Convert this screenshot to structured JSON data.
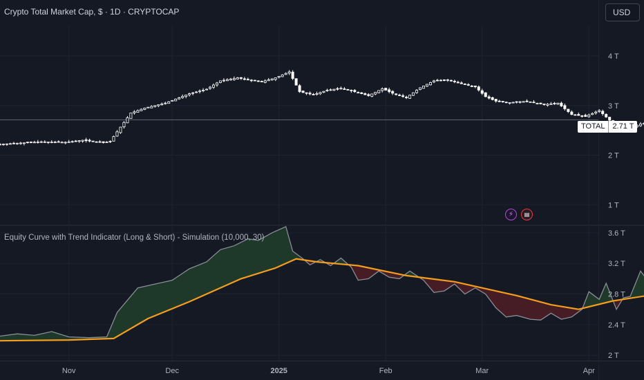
{
  "header": {
    "title": "Crypto Total Market Cap, $ · 1D · CRYPTOCAP",
    "currency": "USD"
  },
  "price_tag": {
    "symbol": "TOTAL",
    "value": "2.71 T"
  },
  "indicator": {
    "title": "Equity Curve with Trend Indicator (Long & Short) - Simulation (10,000, 30)"
  },
  "colors": {
    "background": "#151924",
    "candle": "#ffffff",
    "equity_line": "#8a8e99",
    "trend_line": "#f59d1d",
    "fill_up": "#1f3a2a",
    "fill_down": "#4a1e26",
    "grid": "#1f2331"
  },
  "icons": [
    "dividend-lightning-icon",
    "us-flag-icon"
  ],
  "chart_data": [
    {
      "type": "candlestick",
      "title": "Crypto Total Market Cap, $ · 1D · CRYPTOCAP",
      "series_name": "TOTAL",
      "last_value": "2.71 T",
      "y_axis": {
        "ticks": [
          1,
          2,
          3,
          4
        ],
        "tick_labels": [
          "1 T",
          "2 T",
          "3 T",
          "4 T"
        ],
        "range": [
          0.6,
          4.6
        ],
        "unit": "T"
      },
      "x_axis": {
        "ticks": [
          "Nov",
          "Dec",
          "2025",
          "Feb",
          "Mar",
          "Apr"
        ],
        "range": [
          "2024-10-12",
          "2025-04-17"
        ]
      },
      "start_date": "2024-10-12",
      "end_date": "2025-03-22",
      "anchors": [
        [
          0,
          2.22
        ],
        [
          12,
          2.27
        ],
        [
          19,
          2.26
        ],
        [
          24,
          2.3
        ],
        [
          30,
          2.25
        ],
        [
          32,
          2.28
        ],
        [
          38,
          2.85
        ],
        [
          42,
          2.95
        ],
        [
          48,
          3.05
        ],
        [
          55,
          3.24
        ],
        [
          60,
          3.33
        ],
        [
          64,
          3.5
        ],
        [
          69,
          3.56
        ],
        [
          72,
          3.52
        ],
        [
          76,
          3.48
        ],
        [
          80,
          3.56
        ],
        [
          84,
          3.68
        ],
        [
          87,
          3.28
        ],
        [
          91,
          3.22
        ],
        [
          95,
          3.31
        ],
        [
          99,
          3.35
        ],
        [
          103,
          3.28
        ],
        [
          107,
          3.2
        ],
        [
          111,
          3.34
        ],
        [
          114,
          3.25
        ],
        [
          118,
          3.16
        ],
        [
          122,
          3.36
        ],
        [
          126,
          3.5
        ],
        [
          130,
          3.52
        ],
        [
          134,
          3.44
        ],
        [
          138,
          3.38
        ],
        [
          141,
          3.18
        ],
        [
          144,
          3.09
        ],
        [
          148,
          3.06
        ],
        [
          153,
          3.09
        ],
        [
          158,
          3.02
        ],
        [
          162,
          3.05
        ],
        [
          166,
          2.82
        ],
        [
          170,
          2.78
        ],
        [
          174,
          2.9
        ],
        [
          178,
          2.64
        ],
        [
          182,
          2.52
        ],
        [
          186,
          2.63
        ],
        [
          190,
          2.68
        ],
        [
          193,
          2.71
        ]
      ]
    },
    {
      "type": "area",
      "title": "Equity Curve with Trend Indicator (Long & Short) - Simulation (10,000, 30)",
      "y_axis": {
        "ticks": [
          2.0,
          2.4,
          2.8,
          3.2,
          3.6
        ],
        "tick_labels": [
          "2 T",
          "2.4 T",
          "2.8 T",
          "3.2 T",
          "3.6 T"
        ],
        "range": [
          1.93,
          3.68
        ],
        "unit": "T"
      },
      "equity": [
        [
          0,
          2.25
        ],
        [
          5,
          2.28
        ],
        [
          10,
          2.26
        ],
        [
          15,
          2.31
        ],
        [
          20,
          2.24
        ],
        [
          26,
          2.23
        ],
        [
          31,
          2.24
        ],
        [
          34,
          2.56
        ],
        [
          40,
          2.88
        ],
        [
          45,
          2.93
        ],
        [
          50,
          2.98
        ],
        [
          55,
          3.13
        ],
        [
          60,
          3.22
        ],
        [
          64,
          3.38
        ],
        [
          68,
          3.43
        ],
        [
          72,
          3.52
        ],
        [
          75,
          3.5
        ],
        [
          79,
          3.6
        ],
        [
          83,
          3.68
        ],
        [
          85,
          3.36
        ],
        [
          88,
          3.26
        ],
        [
          90,
          3.18
        ],
        [
          93,
          3.25
        ],
        [
          96,
          3.17
        ],
        [
          99,
          3.27
        ],
        [
          102,
          3.15
        ],
        [
          104,
          2.98
        ],
        [
          107,
          3.0
        ],
        [
          110,
          3.1
        ],
        [
          113,
          3.02
        ],
        [
          116,
          3.0
        ],
        [
          119,
          3.1
        ],
        [
          123,
          2.98
        ],
        [
          126,
          2.82
        ],
        [
          129,
          2.84
        ],
        [
          132,
          2.93
        ],
        [
          135,
          2.8
        ],
        [
          138,
          2.88
        ],
        [
          141,
          2.8
        ],
        [
          144,
          2.62
        ],
        [
          147,
          2.5
        ],
        [
          150,
          2.52
        ],
        [
          154,
          2.47
        ],
        [
          157,
          2.46
        ],
        [
          160,
          2.55
        ],
        [
          163,
          2.47
        ],
        [
          166,
          2.5
        ],
        [
          169,
          2.6
        ],
        [
          171,
          2.83
        ],
        [
          174,
          2.73
        ],
        [
          176,
          2.94
        ],
        [
          179,
          2.6
        ],
        [
          181,
          2.75
        ],
        [
          183,
          2.77
        ],
        [
          186,
          3.1
        ],
        [
          189,
          2.92
        ],
        [
          192,
          3.02
        ],
        [
          196,
          2.94
        ],
        [
          199,
          2.97
        ]
      ],
      "trend": [
        [
          0,
          2.19
        ],
        [
          20,
          2.2
        ],
        [
          33,
          2.22
        ],
        [
          43,
          2.48
        ],
        [
          55,
          2.7
        ],
        [
          70,
          3.0
        ],
        [
          80,
          3.14
        ],
        [
          86,
          3.26
        ],
        [
          92,
          3.22
        ],
        [
          104,
          3.17
        ],
        [
          118,
          3.04
        ],
        [
          132,
          2.96
        ],
        [
          150,
          2.78
        ],
        [
          160,
          2.66
        ],
        [
          168,
          2.6
        ],
        [
          178,
          2.71
        ],
        [
          188,
          2.78
        ],
        [
          199,
          2.85
        ]
      ]
    }
  ]
}
